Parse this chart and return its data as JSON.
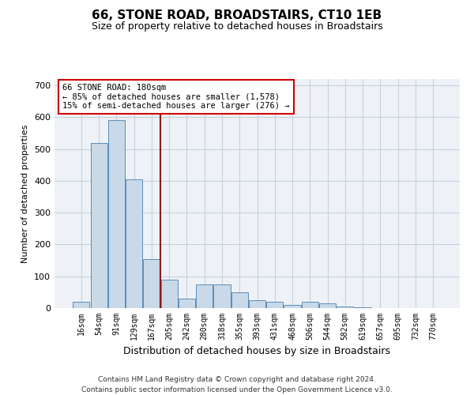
{
  "title1": "66, STONE ROAD, BROADSTAIRS, CT10 1EB",
  "title2": "Size of property relative to detached houses in Broadstairs",
  "xlabel": "Distribution of detached houses by size in Broadstairs",
  "ylabel": "Number of detached properties",
  "categories": [
    "16sqm",
    "54sqm",
    "91sqm",
    "129sqm",
    "167sqm",
    "205sqm",
    "242sqm",
    "280sqm",
    "318sqm",
    "355sqm",
    "393sqm",
    "431sqm",
    "468sqm",
    "506sqm",
    "544sqm",
    "582sqm",
    "619sqm",
    "657sqm",
    "695sqm",
    "732sqm",
    "770sqm"
  ],
  "bar_values": [
    20,
    520,
    590,
    405,
    155,
    90,
    30,
    75,
    75,
    50,
    25,
    20,
    10,
    20,
    15,
    5,
    2,
    1,
    1,
    1,
    0
  ],
  "bar_color": "#c9d9e8",
  "bar_edge_color": "#5b8db8",
  "grid_color": "#c8d0dc",
  "background_color": "#eef2f7",
  "vline_x": 4.5,
  "vline_color": "#8b1a1a",
  "annotation_text": "66 STONE ROAD: 180sqm\n← 85% of detached houses are smaller (1,578)\n15% of semi-detached houses are larger (276) →",
  "annotation_box_color": "#ffffff",
  "annotation_box_edge": "#cc0000",
  "ylim": [
    0,
    720
  ],
  "yticks": [
    0,
    100,
    200,
    300,
    400,
    500,
    600,
    700
  ],
  "footer1": "Contains HM Land Registry data © Crown copyright and database right 2024.",
  "footer2": "Contains public sector information licensed under the Open Government Licence v3.0."
}
